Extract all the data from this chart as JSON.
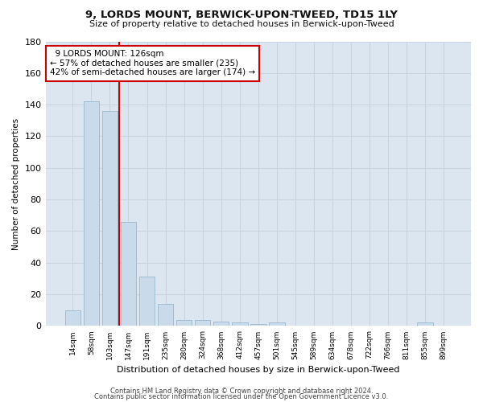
{
  "title1": "9, LORDS MOUNT, BERWICK-UPON-TWEED, TD15 1LY",
  "title2": "Size of property relative to detached houses in Berwick-upon-Tweed",
  "xlabel": "Distribution of detached houses by size in Berwick-upon-Tweed",
  "ylabel": "Number of detached properties",
  "footer1": "Contains HM Land Registry data © Crown copyright and database right 2024.",
  "footer2": "Contains public sector information licensed under the Open Government Licence v3.0.",
  "annotation_line1": "  9 LORDS MOUNT: 126sqm  ",
  "annotation_line2": "← 57% of detached houses are smaller (235)",
  "annotation_line3": "42% of semi-detached houses are larger (174) →",
  "bar_color": "#c9daea",
  "bar_edge_color": "#9ab8cc",
  "vline_color": "#cc0000",
  "categories": [
    "14sqm",
    "58sqm",
    "103sqm",
    "147sqm",
    "191sqm",
    "235sqm",
    "280sqm",
    "324sqm",
    "368sqm",
    "412sqm",
    "457sqm",
    "501sqm",
    "545sqm",
    "589sqm",
    "634sqm",
    "678sqm",
    "722sqm",
    "766sqm",
    "811sqm",
    "855sqm",
    "899sqm"
  ],
  "values": [
    10,
    142,
    136,
    66,
    31,
    14,
    4,
    4,
    3,
    2,
    1,
    2,
    0,
    0,
    0,
    0,
    0,
    0,
    0,
    2,
    0
  ],
  "vline_position": 2.5,
  "ylim": [
    0,
    180
  ],
  "yticks": [
    0,
    20,
    40,
    60,
    80,
    100,
    120,
    140,
    160,
    180
  ],
  "grid_color": "#c8d4df",
  "fig_bg_color": "#ffffff",
  "plot_bg_color": "#dce6f0"
}
